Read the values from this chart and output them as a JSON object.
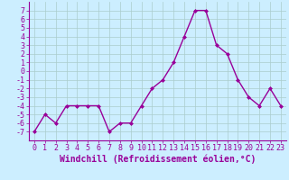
{
  "x": [
    0,
    1,
    2,
    3,
    4,
    5,
    6,
    7,
    8,
    9,
    10,
    11,
    12,
    13,
    14,
    15,
    16,
    17,
    18,
    19,
    20,
    21,
    22,
    23
  ],
  "y": [
    -7,
    -5,
    -6,
    -4,
    -4,
    -4,
    -4,
    -7,
    -6,
    -6,
    -4,
    -2,
    -1,
    1,
    4,
    7,
    7,
    3,
    2,
    -1,
    -3,
    -4,
    -2,
    -4
  ],
  "line_color": "#990099",
  "marker": "D",
  "markersize": 2,
  "linewidth": 1,
  "bg_color": "#cceeff",
  "grid_color": "#aacccc",
  "xlabel": "Windchill (Refroidissement éolien,°C)",
  "xlabel_fontsize": 7,
  "tick_fontsize": 6,
  "ylim": [
    -8,
    8
  ],
  "xlim": [
    -0.5,
    23.5
  ],
  "yticks": [
    -7,
    -6,
    -5,
    -4,
    -3,
    -2,
    -1,
    0,
    1,
    2,
    3,
    4,
    5,
    6,
    7
  ],
  "xticks": [
    0,
    1,
    2,
    3,
    4,
    5,
    6,
    7,
    8,
    9,
    10,
    11,
    12,
    13,
    14,
    15,
    16,
    17,
    18,
    19,
    20,
    21,
    22,
    23
  ]
}
